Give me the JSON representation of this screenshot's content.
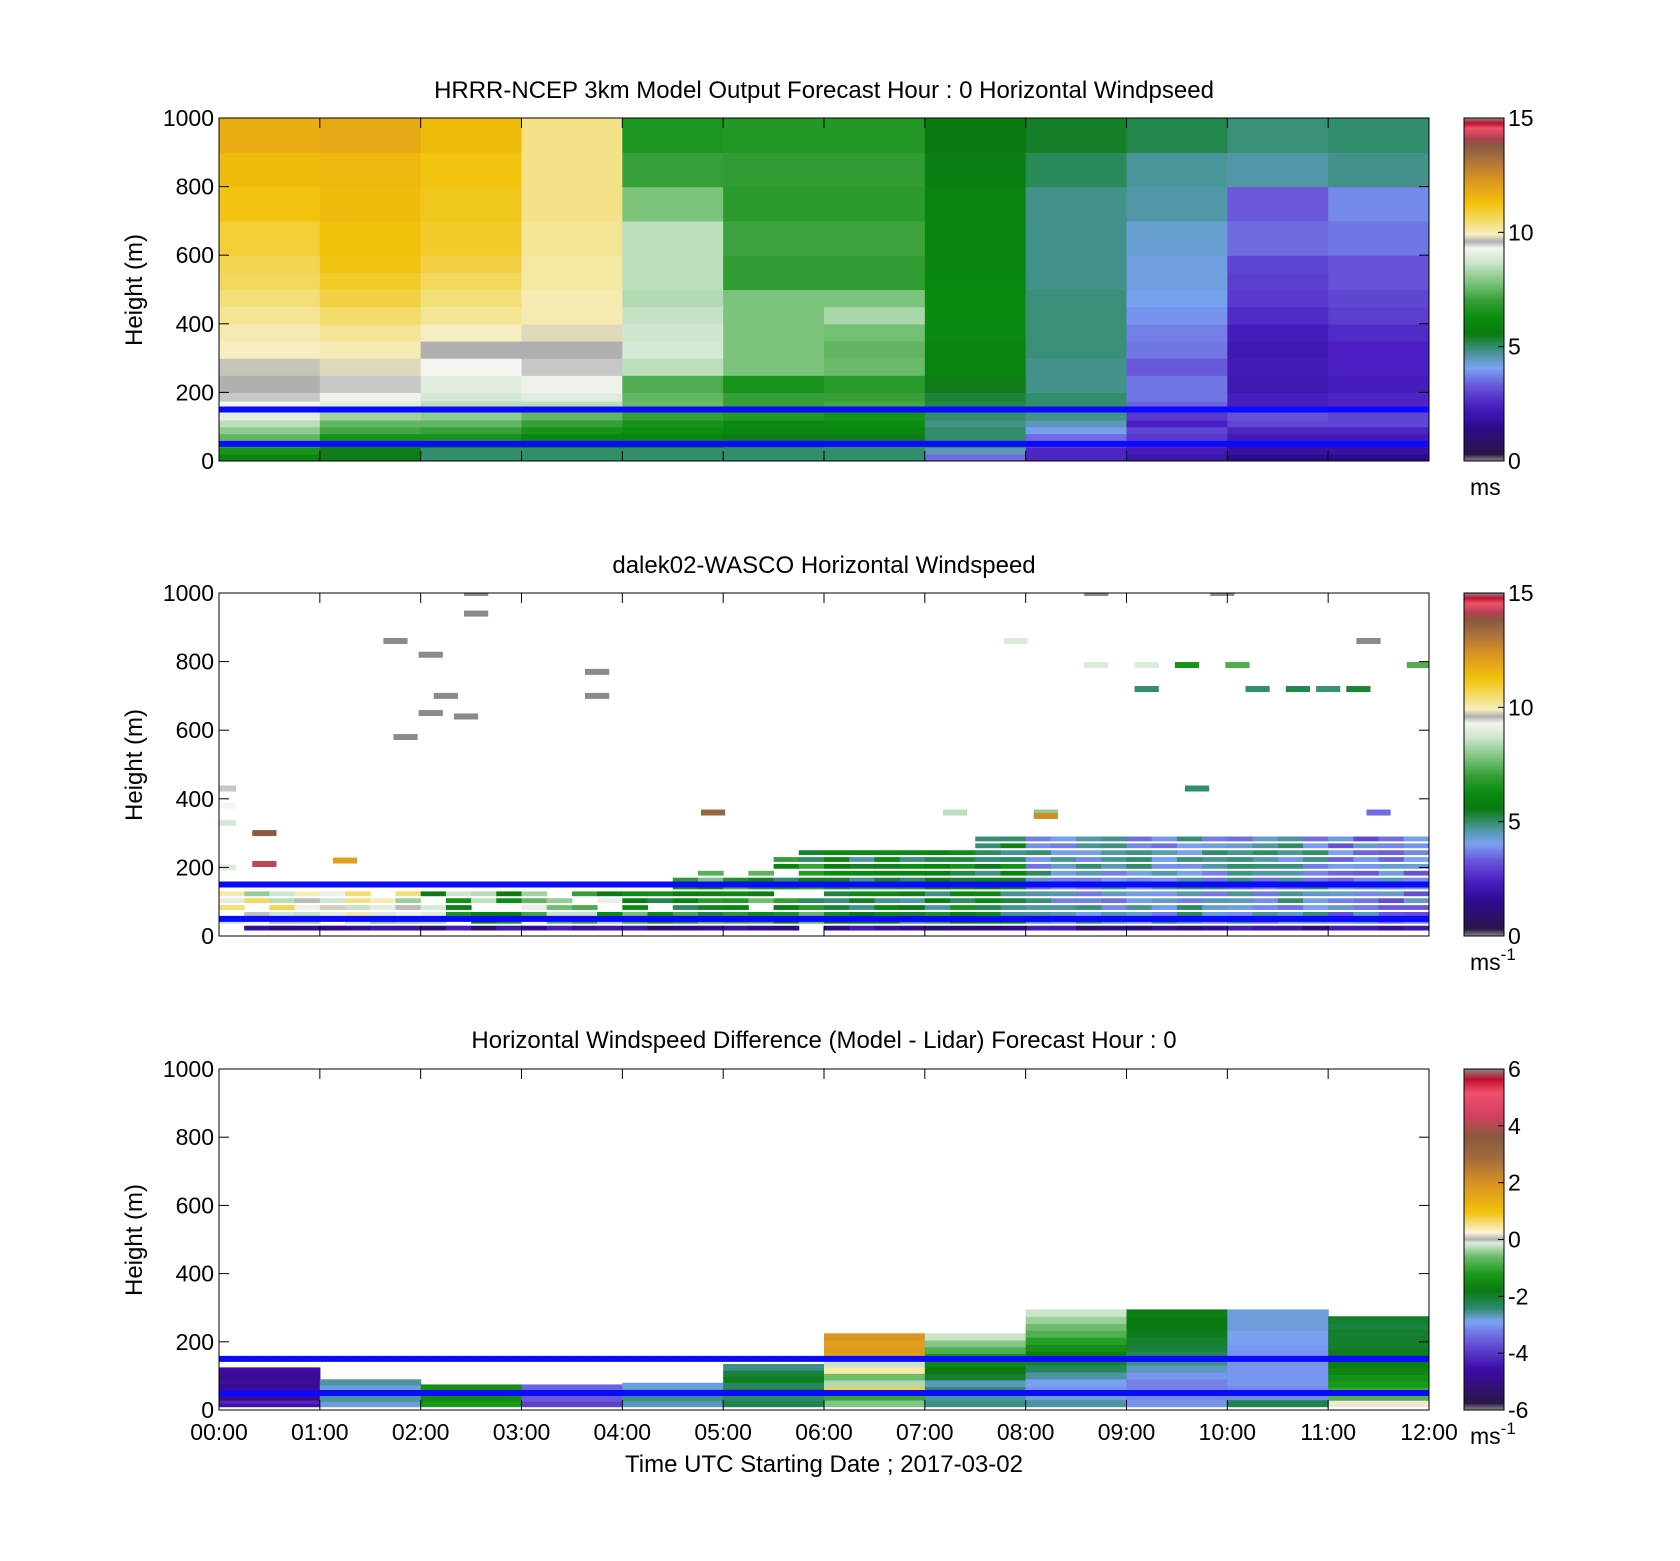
{
  "x_tick_labels": [
    "00:00",
    "01:00",
    "02:00",
    "03:00",
    "04:00",
    "05:00",
    "06:00",
    "07:00",
    "08:00",
    "09:00",
    "10:00",
    "11:00",
    "12:00"
  ],
  "x_axis_label": "Time UTC  Starting Date ; 2017-03-02",
  "reference_lines_height_m": [
    150,
    50
  ],
  "chart_data": [
    {
      "type": "heatmap",
      "title": "HRRR-NCEP 3km Model Output   Forecast Hour : 0 Horizontal Windpseed",
      "ylabel": "Height (m)",
      "xlim": [
        0,
        12
      ],
      "ylim": [
        0,
        1000
      ],
      "y_ticks": [
        0,
        200,
        400,
        600,
        800,
        1000
      ],
      "grid": false,
      "colorbar": {
        "min": 0,
        "max": 15,
        "ticks": [
          0,
          5,
          10,
          15
        ],
        "unit_label": "ms",
        "unit_superscript": ""
      },
      "x_hour_start": [
        0,
        1,
        2,
        3,
        4,
        5,
        6,
        7,
        8,
        9,
        10,
        11
      ],
      "y_levels_m": [
        0,
        20,
        40,
        60,
        80,
        100,
        120,
        150,
        175,
        200,
        250,
        300,
        350,
        400,
        450,
        500,
        550,
        600,
        700,
        800,
        900,
        1000
      ],
      "values": [
        [
          6,
          5.5,
          5,
          5,
          5,
          5,
          5,
          3.5,
          2.5,
          2,
          1.5,
          1.5
        ],
        [
          6.5,
          5.5,
          5,
          5,
          5,
          5,
          5,
          4.5,
          2.5,
          2.2,
          1.8,
          1.8
        ],
        [
          7,
          6,
          6,
          5.5,
          5.5,
          5.2,
          5,
          5,
          3,
          2.5,
          2,
          2
        ],
        [
          7.5,
          6.5,
          6.5,
          6,
          6,
          5.5,
          5.5,
          5,
          3.5,
          2.8,
          2.2,
          2.2
        ],
        [
          8,
          7.2,
          7,
          6.5,
          6.3,
          6,
          6,
          5,
          4,
          3,
          2.5,
          2.5
        ],
        [
          8.5,
          7.5,
          7.5,
          7,
          6.5,
          6.2,
          6.3,
          4.8,
          4.5,
          2.4,
          3,
          3
        ],
        [
          9,
          8.2,
          8,
          7.5,
          7,
          6.7,
          6.5,
          5,
          4.8,
          2.8,
          3.2,
          3
        ],
        [
          9.3,
          9,
          8.5,
          8.5,
          7.6,
          7,
          7.2,
          5.2,
          5,
          3.4,
          2.3,
          2.5
        ],
        [
          9.5,
          9.2,
          8.8,
          9,
          7.5,
          7,
          7,
          5.3,
          5,
          3.6,
          2.3,
          2.5
        ],
        [
          9.6,
          9.5,
          9,
          9.2,
          7.3,
          6.5,
          6.8,
          5.5,
          4.8,
          3.6,
          2.1,
          2.3
        ],
        [
          9.7,
          9.8,
          9.3,
          9.5,
          8.5,
          7.8,
          7.6,
          5.9,
          4.8,
          3.3,
          2.2,
          2.4
        ],
        [
          9.9,
          10,
          9.6,
          9.6,
          8.8,
          7.8,
          7.5,
          6.0,
          4.9,
          3.6,
          2.1,
          2.4
        ],
        [
          10,
          10.2,
          9.9,
          9.8,
          8.7,
          7.8,
          7.7,
          6.1,
          4.9,
          3.7,
          2.3,
          2.6
        ],
        [
          10.2,
          10.5,
          10.2,
          10,
          8.6,
          7.8,
          8.3,
          6.2,
          4.9,
          3.9,
          2.6,
          2.9
        ],
        [
          10.4,
          10.8,
          10.4,
          10,
          8.4,
          7.8,
          7.8,
          6.2,
          4.9,
          4.1,
          2.8,
          3.0
        ],
        [
          10.6,
          11,
          10.6,
          10.1,
          8.5,
          6.9,
          6.9,
          6.1,
          4.8,
          4.2,
          2.9,
          3.2
        ],
        [
          10.7,
          11.2,
          10.8,
          10.1,
          8.5,
          6.9,
          6.9,
          6.0,
          4.8,
          4.2,
          3.0,
          3.2
        ],
        [
          10.9,
          11.3,
          11,
          10.2,
          8.5,
          7.1,
          7.1,
          6.0,
          4.8,
          4.3,
          3.5,
          3.6
        ],
        [
          11.2,
          11.4,
          11.1,
          10.3,
          7.8,
          6.8,
          6.8,
          5.9,
          4.8,
          4.6,
          3.3,
          3.8
        ],
        [
          11.4,
          11.5,
          11.2,
          10.3,
          7.0,
          6.9,
          6.9,
          5.7,
          5.1,
          4.7,
          4.6,
          4.8
        ],
        [
          11.7,
          11.8,
          11.4,
          10.3,
          6.6,
          6.7,
          6.7,
          5.6,
          5.4,
          5.2,
          4.9,
          5.0
        ]
      ]
    },
    {
      "type": "heatmap",
      "title": "dalek02-WASCO  Horizontal Windspeed",
      "ylabel": "Height (m)",
      "xlim": [
        0,
        12
      ],
      "ylim": [
        0,
        1000
      ],
      "y_ticks": [
        0,
        200,
        400,
        600,
        800,
        1000
      ],
      "grid": false,
      "colorbar": {
        "min": 0,
        "max": 15,
        "ticks": [
          0,
          5,
          10,
          15
        ],
        "unit_label": "ms",
        "unit_superscript": "-1"
      },
      "x_step_minutes": 15,
      "lowest_gate_m": 20,
      "gate_spacing_m": 20,
      "high_level_sparse_points": [
        {
          "t": 1.75,
          "z": 860,
          "v": 15.5
        },
        {
          "t": 2.1,
          "z": 820,
          "v": 15.5
        },
        {
          "t": 2.25,
          "z": 700,
          "v": 15.5
        },
        {
          "t": 1.85,
          "z": 580,
          "v": 15.5
        },
        {
          "t": 2.1,
          "z": 650,
          "v": 15.5
        },
        {
          "t": 2.45,
          "z": 640,
          "v": 15.5
        },
        {
          "t": 2.55,
          "z": 940,
          "v": 15.5
        },
        {
          "t": 2.55,
          "z": 1000,
          "v": 15.5
        },
        {
          "t": 3.75,
          "z": 770,
          "v": 15.5
        },
        {
          "t": 3.75,
          "z": 700,
          "v": 15.5
        },
        {
          "t": 7.9,
          "z": 860,
          "v": 8.9
        },
        {
          "t": 8.7,
          "z": 790,
          "v": 8.9
        },
        {
          "t": 9.2,
          "z": 720,
          "v": 5.0
        },
        {
          "t": 9.2,
          "z": 790,
          "v": 8.9
        },
        {
          "t": 9.6,
          "z": 790,
          "v": 6.5
        },
        {
          "t": 10.1,
          "z": 790,
          "v": 7.3
        },
        {
          "t": 10.3,
          "z": 720,
          "v": 5.0
        },
        {
          "t": 10.7,
          "z": 720,
          "v": 5.2
        },
        {
          "t": 11.0,
          "z": 720,
          "v": 4.9
        },
        {
          "t": 11.3,
          "z": 720,
          "v": 5.3
        },
        {
          "t": 11.4,
          "z": 860,
          "v": 15.5
        },
        {
          "t": 8.7,
          "z": 1000,
          "v": 15.5
        },
        {
          "t": 9.95,
          "z": 1000,
          "v": 15.5
        },
        {
          "t": 11.9,
          "z": 790,
          "v": 7.3
        },
        {
          "t": 11.5,
          "z": 360,
          "v": 3.5
        },
        {
          "t": 9.7,
          "z": 430,
          "v": 5.0
        },
        {
          "t": 4.9,
          "z": 360,
          "v": 13.5
        },
        {
          "t": 0.45,
          "z": 300,
          "v": 13.8
        },
        {
          "t": 0.45,
          "z": 210,
          "v": 14.2
        },
        {
          "t": 1.25,
          "z": 220,
          "v": 12.0
        },
        {
          "t": 0.05,
          "z": 430,
          "v": 9.5
        },
        {
          "t": 0.05,
          "z": 380,
          "v": 9.3
        },
        {
          "t": 0.05,
          "z": 330,
          "v": 8.8
        },
        {
          "t": 0.05,
          "z": 200,
          "v": 9.0
        },
        {
          "t": 7.3,
          "z": 360,
          "v": 8.5
        },
        {
          "t": 8.2,
          "z": 360,
          "v": 8.0
        },
        {
          "t": 8.2,
          "z": 350,
          "v": 12.5
        }
      ]
    },
    {
      "type": "heatmap",
      "title": "Horizontal Windspeed Difference (Model - Lidar) Forecast Hour : 0",
      "ylabel": "Height (m)",
      "xlabel": "Time UTC  Starting Date ; 2017-03-02",
      "xlim": [
        0,
        12
      ],
      "ylim": [
        0,
        1000
      ],
      "y_ticks": [
        0,
        200,
        400,
        600,
        800,
        1000
      ],
      "grid": false,
      "colorbar": {
        "min": -6,
        "max": 6,
        "ticks": [
          -6,
          -4,
          -2,
          0,
          2,
          4,
          6
        ],
        "unit_label": "ms",
        "unit_superscript": "-1"
      },
      "x_hour_start": [
        0,
        1,
        2,
        3,
        4,
        5,
        6,
        7,
        8,
        9,
        10,
        11
      ],
      "column_top_m": [
        125,
        90,
        75,
        75,
        80,
        135,
        225,
        225,
        295,
        295,
        295,
        275
      ],
      "column_values_low_to_high": [
        [
          -4.5,
          -4.2,
          -4.8,
          -4.6,
          -4.9,
          -4.7,
          -5.0,
          -4.6,
          -4.8,
          -4.9,
          -4.7,
          -4.6
        ],
        [
          -2.8,
          -2.6,
          -2.7,
          -2.8,
          -2.6
        ],
        [
          -1.2,
          -1.5,
          -1.0,
          -1.4
        ],
        [
          -3.9,
          -3.6,
          -3.8,
          -3.5
        ],
        [
          -2.7,
          -2.5,
          -2.6,
          -2.8
        ],
        [
          -2.2,
          -2.4,
          -2.0,
          -2.3,
          -1.9,
          -2.1,
          -2.5
        ],
        [
          -0.5,
          -1.0,
          0.8,
          -0.3,
          -0.6,
          0.4,
          -0.2,
          1.6,
          1.8,
          1.7,
          1.9
        ],
        [
          -2.5,
          -2.6,
          -2.4,
          -2.7,
          -2.0,
          -1.8,
          -1.6,
          -1.2,
          -0.8,
          -0.5,
          -0.2
        ],
        [
          -2.6,
          -2.8,
          -3.0,
          -2.9,
          -2.6,
          -2.3,
          -2.0,
          -1.7,
          -1.4,
          -1.1,
          -0.8,
          -0.6,
          -0.4,
          -0.2
        ],
        [
          -3.0,
          -3.1,
          -3.2,
          -3.2,
          -3.0,
          -2.7,
          -2.5,
          -2.3,
          -2.1,
          -2.0,
          -1.9,
          -1.8,
          -1.8,
          -1.7
        ],
        [
          -2.2,
          -3.1,
          -3.1,
          -3.0,
          -3.0,
          -3.0,
          -3.0,
          -3.0,
          -3.0,
          -2.9,
          -2.9,
          -2.8,
          -2.8,
          -2.8
        ],
        [
          0.2,
          -0.8,
          -1.0,
          -1.2,
          -1.4,
          -1.6,
          -1.7,
          -1.8,
          -1.9,
          -2.0,
          -2.0,
          -2.0,
          -2.1,
          -2.0
        ]
      ]
    }
  ]
}
